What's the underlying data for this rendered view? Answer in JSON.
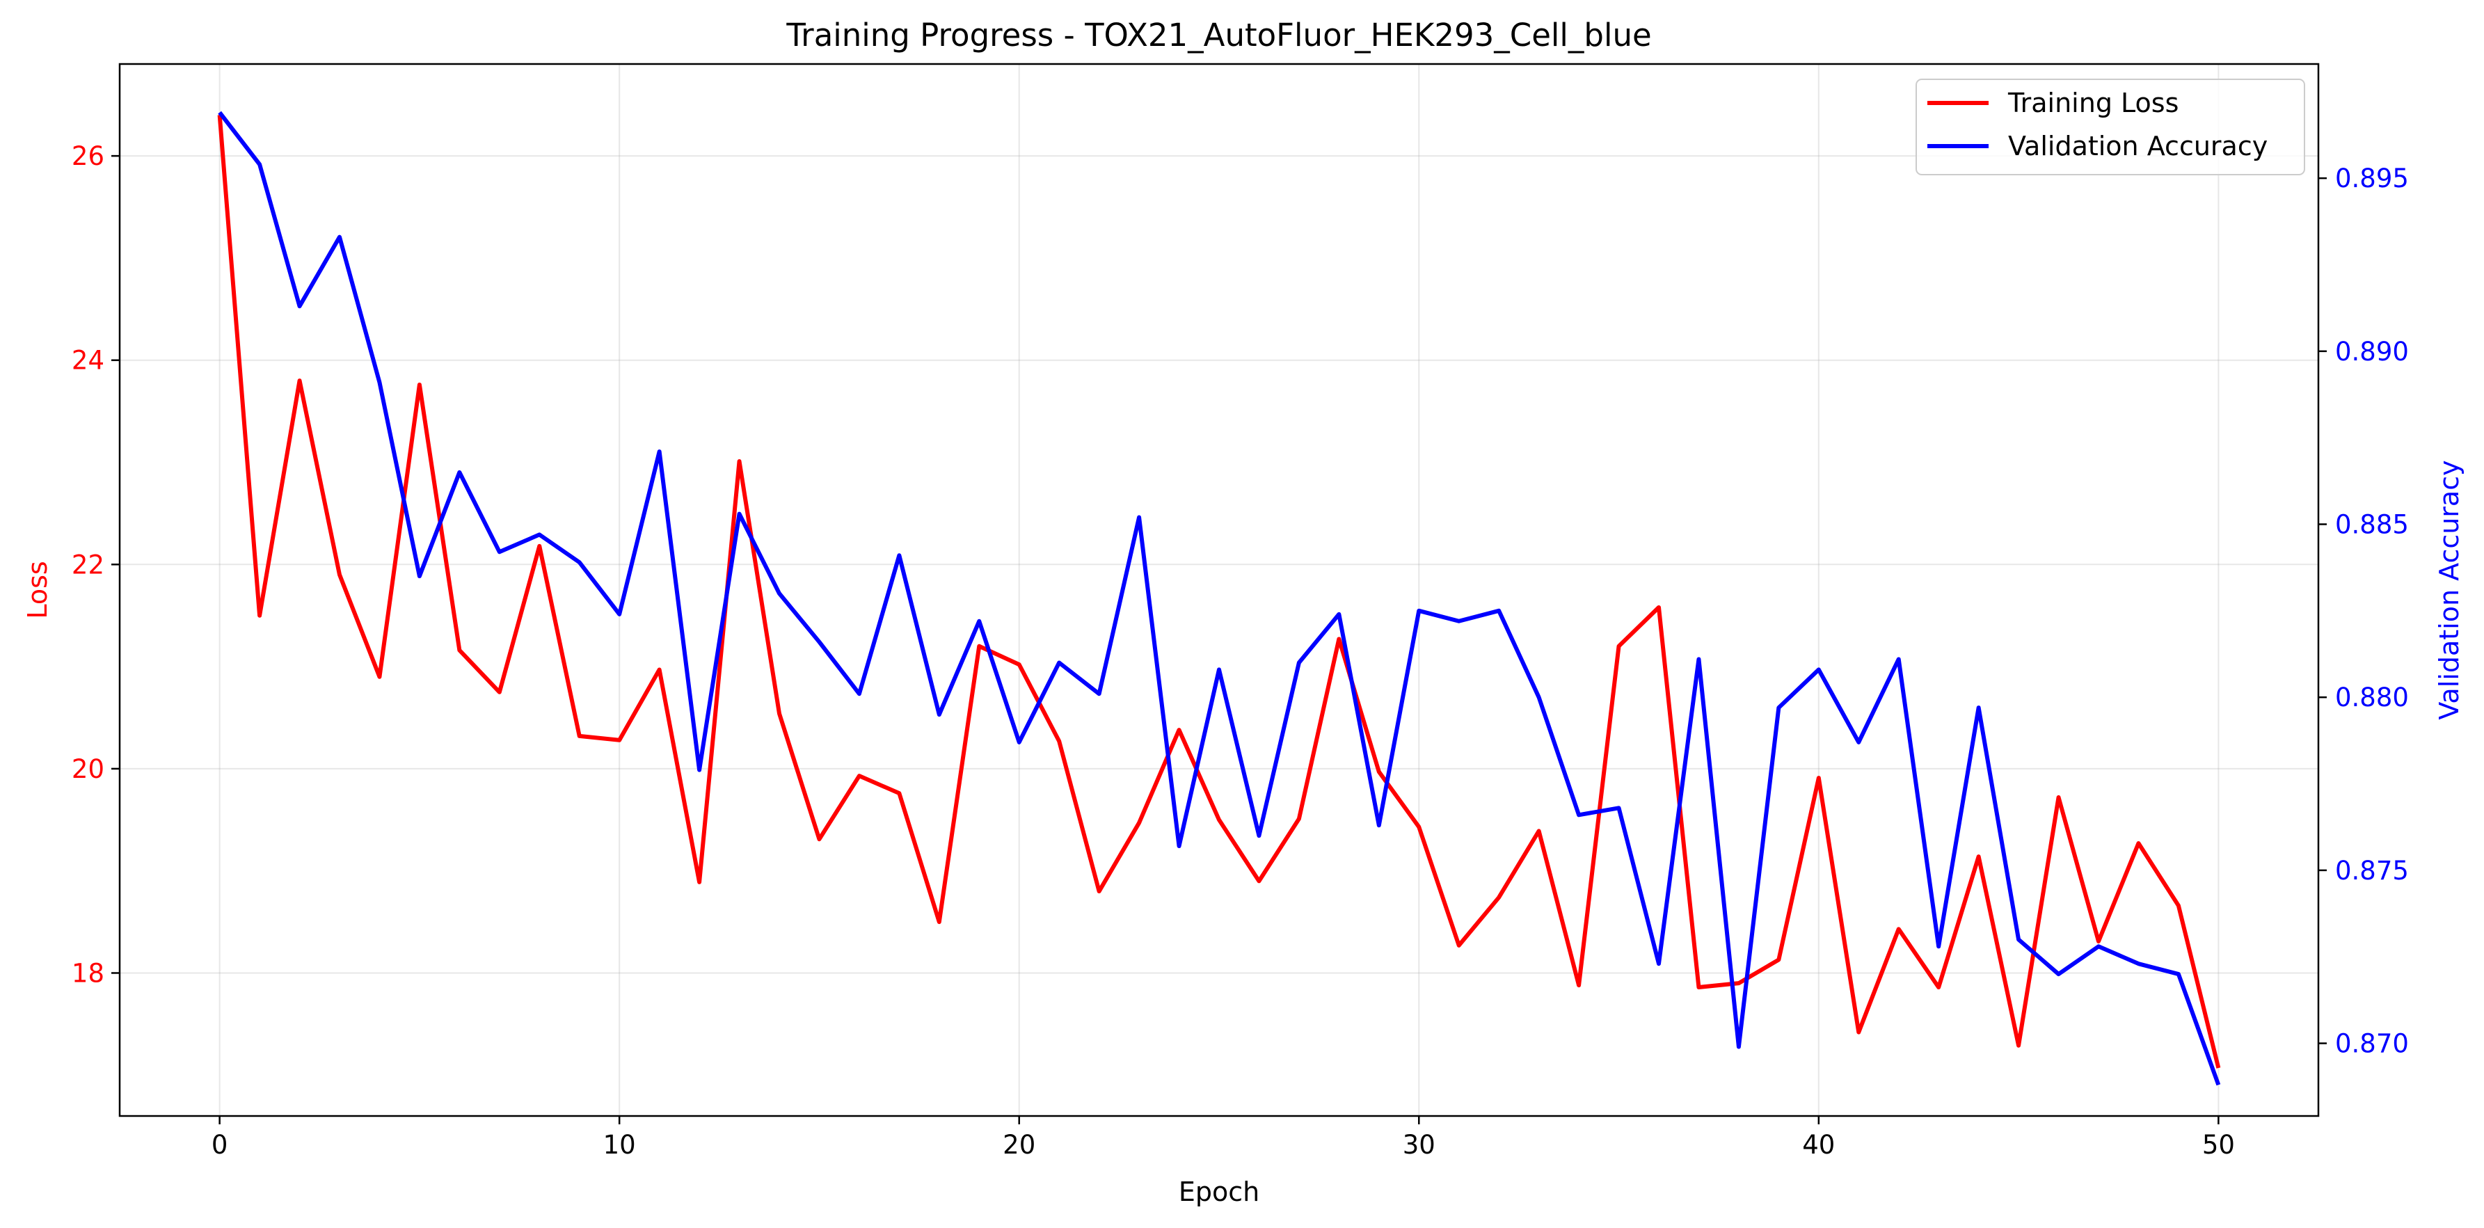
{
  "chart_data": {
    "type": "line",
    "title": "Training Progress - TOX21_AutoFluor_HEK293_Cell_blue",
    "xlabel": "Epoch",
    "ylabel_left": "Loss",
    "ylabel_right": "Validation Accuracy",
    "xlim": [
      -2.5,
      52.5
    ],
    "ylim_left": [
      16.6,
      26.9
    ],
    "ylim_right": [
      0.8679,
      0.8983
    ],
    "x_ticks": [
      0,
      10,
      20,
      30,
      40,
      50
    ],
    "y_left_ticks": [
      18,
      20,
      22,
      24,
      26
    ],
    "y_right_ticks": [
      0.87,
      0.875,
      0.88,
      0.885,
      0.89,
      0.895
    ],
    "y_right_tick_labels": [
      "0.870",
      "0.875",
      "0.880",
      "0.885",
      "0.890",
      "0.895"
    ],
    "grid": true,
    "legend_position": "top-right",
    "x": [
      0,
      1,
      2,
      3,
      4,
      5,
      6,
      7,
      8,
      9,
      10,
      11,
      12,
      13,
      14,
      15,
      16,
      17,
      18,
      19,
      20,
      21,
      22,
      23,
      24,
      25,
      26,
      27,
      28,
      29,
      30,
      31,
      32,
      33,
      34,
      35,
      36,
      37,
      38,
      39,
      40,
      41,
      42,
      43,
      44,
      45,
      46,
      47,
      48,
      49,
      50
    ],
    "series": [
      {
        "name": "Training Loss",
        "axis": "left",
        "color": "#ff0000",
        "values": [
          26.4,
          21.5,
          23.8,
          21.9,
          20.9,
          23.76,
          21.16,
          20.75,
          22.18,
          20.32,
          20.28,
          20.97,
          18.89,
          23.01,
          20.54,
          19.31,
          19.93,
          19.76,
          18.5,
          21.2,
          21.02,
          20.27,
          18.8,
          19.47,
          20.38,
          19.5,
          18.9,
          19.51,
          21.27,
          19.97,
          19.43,
          18.27,
          18.74,
          19.39,
          17.88,
          21.2,
          21.58,
          17.86,
          17.9,
          18.13,
          19.91,
          17.42,
          18.43,
          17.86,
          19.14,
          17.29,
          19.72,
          18.31,
          19.27,
          18.66,
          17.07
        ]
      },
      {
        "name": "Validation Accuracy",
        "axis": "right",
        "color": "#0000ff",
        "values": [
          0.8969,
          0.8954,
          0.8913,
          0.8933,
          0.8891,
          0.8835,
          0.8865,
          0.8842,
          0.8847,
          0.8839,
          0.8824,
          0.8871,
          0.8779,
          0.8853,
          0.883,
          0.8816,
          0.8801,
          0.8841,
          0.8795,
          0.8822,
          0.8787,
          0.881,
          0.8801,
          0.8852,
          0.8757,
          0.8808,
          0.876,
          0.881,
          0.8824,
          0.8763,
          0.8825,
          0.8822,
          0.8825,
          0.88,
          0.8766,
          0.8768,
          0.8723,
          0.8811,
          0.8699,
          0.8797,
          0.8808,
          0.8787,
          0.8811,
          0.8728,
          0.8797,
          0.873,
          0.872,
          0.8728,
          0.8723,
          0.872,
          0.8688
        ]
      }
    ]
  }
}
